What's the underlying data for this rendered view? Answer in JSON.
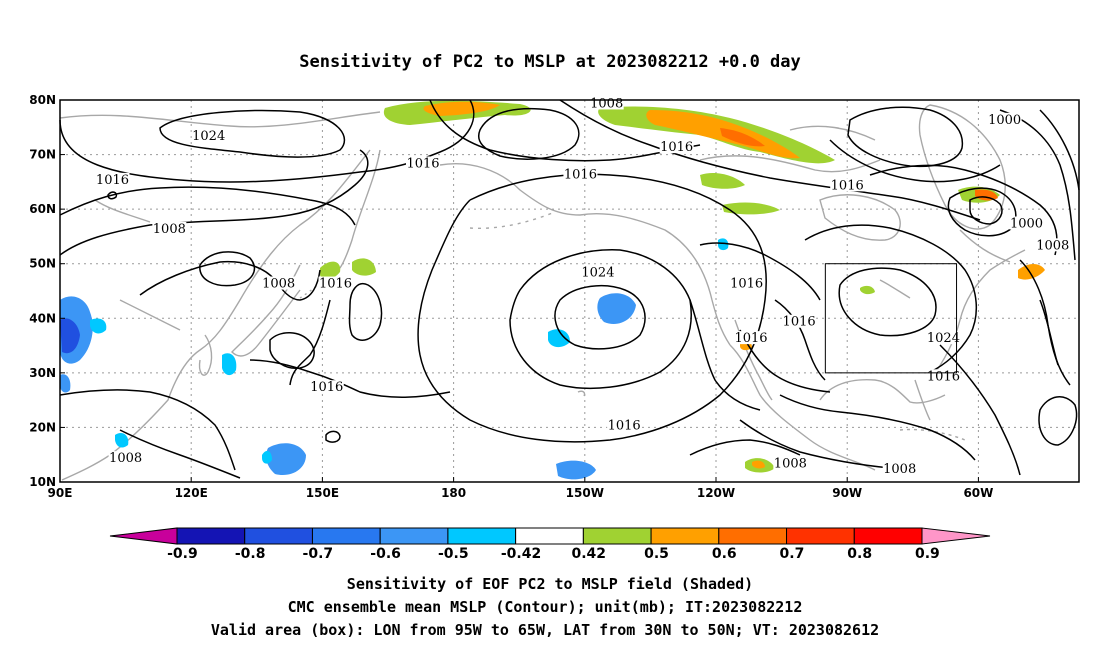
{
  "title": "Sensitivity of PC2 to MSLP at 2023082212 +0.0 day",
  "map": {
    "lon_labels": [
      "90E",
      "120E",
      "150E",
      "180",
      "150W",
      "120W",
      "90W",
      "60W"
    ],
    "lon_values": [
      90,
      120,
      150,
      180,
      210,
      240,
      270,
      300
    ],
    "lat_labels": [
      "80N",
      "70N",
      "60N",
      "50N",
      "40N",
      "30N",
      "20N",
      "10N"
    ],
    "lat_values": [
      80,
      70,
      60,
      50,
      40,
      30,
      20,
      10
    ],
    "extent": {
      "lon_min": 90,
      "lon_max": 323,
      "lat_min": 10,
      "lat_max": 80
    },
    "grid": "dotted",
    "contour_labels": [
      {
        "text": "1008",
        "lon": 105,
        "lat": 14
      },
      {
        "text": "1024",
        "lon": 124,
        "lat": 73
      },
      {
        "text": "1016",
        "lon": 102,
        "lat": 65
      },
      {
        "text": "1016",
        "lon": 173,
        "lat": 68
      },
      {
        "text": "1008",
        "lon": 215,
        "lat": 79
      },
      {
        "text": "1016",
        "lon": 231,
        "lat": 71
      },
      {
        "text": "1016",
        "lon": 209,
        "lat": 66
      },
      {
        "text": "1016",
        "lon": 270,
        "lat": 64
      },
      {
        "text": "1000",
        "lon": 306,
        "lat": 76
      },
      {
        "text": "1000",
        "lon": 311,
        "lat": 57
      },
      {
        "text": "1008",
        "lon": 317,
        "lat": 53
      },
      {
        "text": "1008",
        "lon": 115,
        "lat": 56
      },
      {
        "text": "1008",
        "lon": 140,
        "lat": 46
      },
      {
        "text": "1016",
        "lon": 153,
        "lat": 46
      },
      {
        "text": "1016",
        "lon": 151,
        "lat": 27
      },
      {
        "text": "1024",
        "lon": 213,
        "lat": 48
      },
      {
        "text": "1016",
        "lon": 247,
        "lat": 46
      },
      {
        "text": "1016",
        "lon": 248,
        "lat": 36
      },
      {
        "text": "1016",
        "lon": 259,
        "lat": 39
      },
      {
        "text": "1016",
        "lon": 219,
        "lat": 20
      },
      {
        "text": "1024",
        "lon": 292,
        "lat": 36
      },
      {
        "text": "1016",
        "lon": 292,
        "lat": 29
      },
      {
        "text": "1008",
        "lon": 257,
        "lat": 13
      },
      {
        "text": "1008",
        "lon": 282,
        "lat": 12
      }
    ],
    "valid_box": {
      "lon_min": 265,
      "lon_max": 295,
      "lat_min": 30,
      "lat_max": 50
    }
  },
  "colorbar": {
    "labels": [
      "-0.9",
      "-0.8",
      "-0.7",
      "-0.6",
      "-0.5",
      "-0.42",
      "0.42",
      "0.5",
      "0.6",
      "0.7",
      "0.8",
      "0.9"
    ],
    "colors": [
      "#1414b4",
      "#2050e0",
      "#2878f0",
      "#3c96f5",
      "#00c8ff",
      "#ffffff",
      "#a0d232",
      "#ffa000",
      "#ff6e00",
      "#ff3200",
      "#ff0000"
    ],
    "low_cap_color": "#c8009b",
    "high_cap_color": "#ff96c8"
  },
  "caption": {
    "line1": "Sensitivity of EOF PC2 to MSLP field (Shaded)",
    "line2": "CMC ensemble mean MSLP (Contour); unit(mb); IT:2023082212",
    "line3": "Valid area (box): LON from 95W to 65W, LAT from 30N to 50N; VT: 2023082612"
  }
}
